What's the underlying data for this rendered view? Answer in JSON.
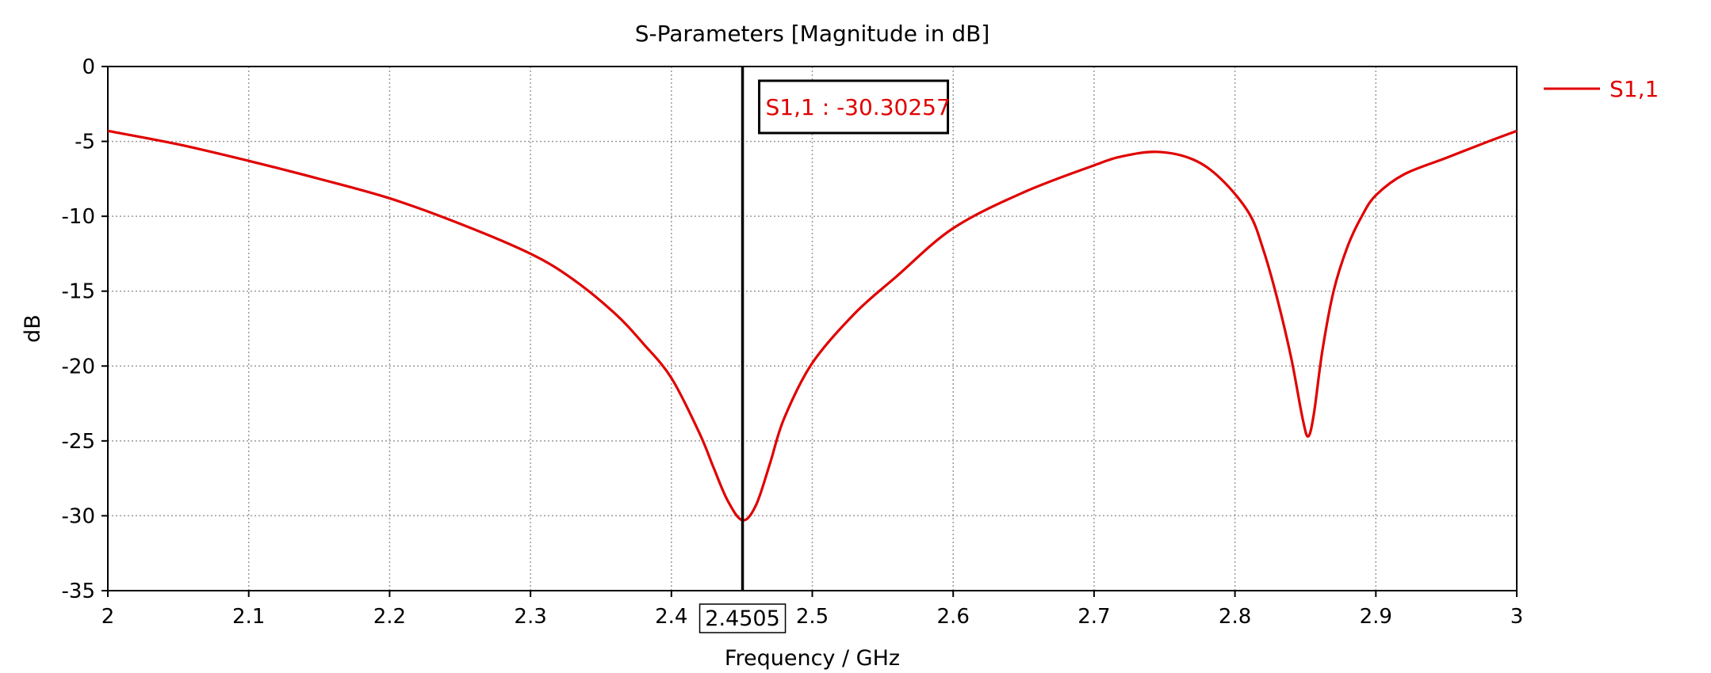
{
  "chart_data": {
    "type": "line",
    "title": "S-Parameters [Magnitude in dB]",
    "xlabel": "Frequency / GHz",
    "ylabel": "dB",
    "xlim": [
      2,
      3
    ],
    "ylim": [
      -35,
      0
    ],
    "xticks": [
      "2",
      "2.1",
      "2.2",
      "2.3",
      "2.4",
      "2.5",
      "2.6",
      "2.7",
      "2.8",
      "2.9",
      "3"
    ],
    "yticks": [
      "0",
      "-5",
      "-10",
      "-15",
      "-20",
      "-25",
      "-30",
      "-35"
    ],
    "grid": true,
    "legend": {
      "placement": "outside-top-right"
    },
    "series": [
      {
        "name": "S1,1",
        "color": "#e00000",
        "points": [
          [
            2.0,
            -4.3
          ],
          [
            2.05,
            -5.2
          ],
          [
            2.1,
            -6.3
          ],
          [
            2.15,
            -7.5
          ],
          [
            2.2,
            -8.8
          ],
          [
            2.25,
            -10.5
          ],
          [
            2.3,
            -12.5
          ],
          [
            2.33,
            -14.2
          ],
          [
            2.36,
            -16.5
          ],
          [
            2.38,
            -18.5
          ],
          [
            2.4,
            -20.8
          ],
          [
            2.42,
            -24.5
          ],
          [
            2.43,
            -26.8
          ],
          [
            2.44,
            -29.0
          ],
          [
            2.4505,
            -30.3
          ],
          [
            2.46,
            -29.3
          ],
          [
            2.47,
            -26.5
          ],
          [
            2.48,
            -23.5
          ],
          [
            2.5,
            -19.8
          ],
          [
            2.53,
            -16.5
          ],
          [
            2.56,
            -14.0
          ],
          [
            2.6,
            -10.8
          ],
          [
            2.65,
            -8.4
          ],
          [
            2.7,
            -6.6
          ],
          [
            2.72,
            -6.0
          ],
          [
            2.745,
            -5.7
          ],
          [
            2.77,
            -6.2
          ],
          [
            2.79,
            -7.5
          ],
          [
            2.81,
            -9.8
          ],
          [
            2.82,
            -12.2
          ],
          [
            2.83,
            -15.5
          ],
          [
            2.84,
            -19.5
          ],
          [
            2.848,
            -23.5
          ],
          [
            2.852,
            -24.7
          ],
          [
            2.856,
            -23.2
          ],
          [
            2.862,
            -19.0
          ],
          [
            2.87,
            -15.0
          ],
          [
            2.88,
            -12.0
          ],
          [
            2.89,
            -10.0
          ],
          [
            2.9,
            -8.6
          ],
          [
            2.92,
            -7.2
          ],
          [
            2.95,
            -6.1
          ],
          [
            2.98,
            -5.0
          ],
          [
            3.0,
            -4.3
          ]
        ]
      }
    ],
    "marker": {
      "x": 2.4505,
      "x_label": "2.4505",
      "label": "S1,1 : -30.30257"
    }
  }
}
